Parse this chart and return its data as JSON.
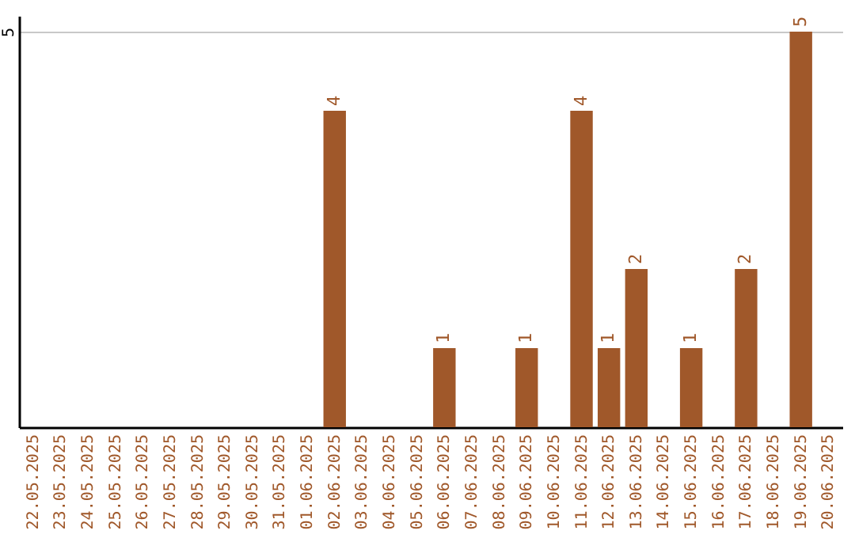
{
  "chart_data": {
    "type": "bar",
    "categories": [
      "22.05.2025",
      "23.05.2025",
      "24.05.2025",
      "25.05.2025",
      "26.05.2025",
      "27.05.2025",
      "28.05.2025",
      "29.05.2025",
      "30.05.2025",
      "31.05.2025",
      "01.06.2025",
      "02.06.2025",
      "03.06.2025",
      "04.06.2025",
      "05.06.2025",
      "06.06.2025",
      "07.06.2025",
      "08.06.2025",
      "09.06.2025",
      "10.06.2025",
      "11.06.2025",
      "12.06.2025",
      "13.06.2025",
      "14.06.2025",
      "15.06.2025",
      "16.06.2025",
      "17.06.2025",
      "18.06.2025",
      "19.06.2025",
      "20.06.2025"
    ],
    "values": [
      0,
      0,
      0,
      0,
      0,
      0,
      0,
      0,
      0,
      0,
      0,
      4,
      0,
      0,
      0,
      1,
      0,
      0,
      1,
      0,
      4,
      1,
      2,
      0,
      1,
      0,
      2,
      0,
      5,
      0
    ],
    "value_labels": [
      null,
      null,
      null,
      null,
      null,
      null,
      null,
      null,
      null,
      null,
      null,
      "4",
      null,
      null,
      null,
      "1",
      null,
      null,
      "1",
      null,
      "4",
      "1",
      "2",
      null,
      "1",
      null,
      "2",
      null,
      "5",
      null
    ],
    "color": "#a0582a",
    "ylim": [
      0,
      5.2
    ],
    "yticks": [
      5
    ],
    "grid": "y"
  }
}
